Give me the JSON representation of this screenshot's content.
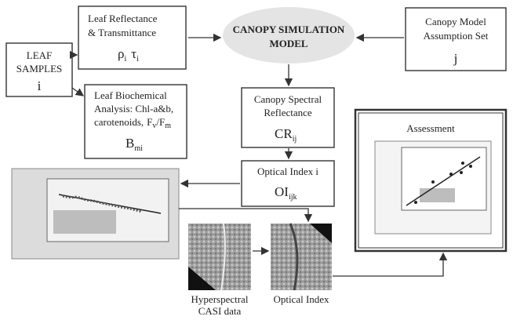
{
  "nodes": {
    "leaf_samples": {
      "label": [
        "LEAF",
        "SAMPLES"
      ],
      "symbol": "i"
    },
    "leaf_reflectance": {
      "label": [
        "Leaf Reflectance",
        "& Transmittance"
      ],
      "symbol1": "ρ",
      "sub1": "i",
      "symbol2": "τ",
      "sub2": "i"
    },
    "canopy_model": {
      "label": [
        "CANOPY SIMULATION",
        "MODEL"
      ]
    },
    "assumption_set": {
      "label": [
        "Canopy Model",
        "Assumption Set"
      ],
      "symbol": "j"
    },
    "biochemical": {
      "label": [
        "Leaf Biochemical",
        "Analysis: Chl-a&b,",
        "carotenoids,"
      ],
      "f1": "F",
      "fsub1": "v",
      "f2": "/F",
      "fsub2": "m",
      "symbol": "B",
      "sub": "mi"
    },
    "canopy_reflectance": {
      "label": [
        "Canopy Spectral",
        "Reflectance"
      ],
      "symbol": "CR",
      "sub": "ij"
    },
    "optical_index": {
      "label": "Optical Index i",
      "symbol": "OI",
      "sub": "ijk"
    },
    "assessment": {
      "title": "Assessment"
    },
    "hyperspectral_image": {
      "caption": [
        "Hyperspectral",
        "CASI data"
      ]
    },
    "optical_index_image": {
      "caption": "Optical Index"
    }
  }
}
